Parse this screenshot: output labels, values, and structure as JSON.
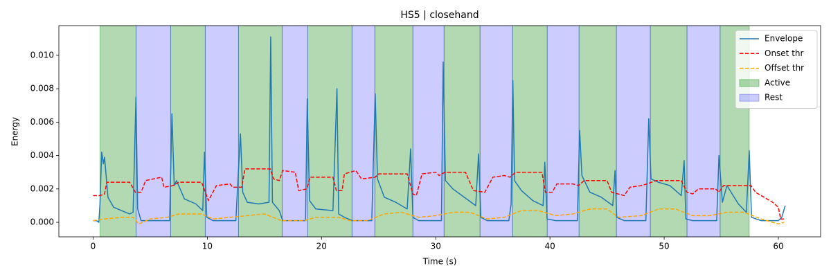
{
  "chart_data": {
    "type": "line",
    "title": "HS5 | closehand",
    "xlabel": "Time (s)",
    "ylabel": "Energy",
    "xlim": [
      -3.0,
      63.7
    ],
    "ylim": [
      -0.00087,
      0.01178
    ],
    "xticks": [
      0,
      10,
      20,
      30,
      40,
      50,
      60
    ],
    "yticks": [
      {
        "value": 0,
        "label": "0.000"
      },
      {
        "value": 0.002,
        "label": "0.002"
      },
      {
        "value": 0.004,
        "label": "0.004"
      },
      {
        "value": 0.006,
        "label": "0.006"
      },
      {
        "value": 0.008,
        "label": "0.008"
      },
      {
        "value": 0.01,
        "label": "0.010"
      }
    ],
    "legend": "upper right",
    "series": [
      {
        "name": "Envelope",
        "color": "#1f77b4",
        "dash": false,
        "x": [
          0,
          0.3,
          0.5,
          0.6,
          0.75,
          0.9,
          1.0,
          1.3,
          1.8,
          2.5,
          3.2,
          3.5,
          3.75,
          3.9,
          4.2,
          6.0,
          6.7,
          6.9,
          7.1,
          7.3,
          8.0,
          9.0,
          9.6,
          9.75,
          9.95,
          10.5,
          12.5,
          12.7,
          12.9,
          13.1,
          13.5,
          14.5,
          15.4,
          15.55,
          15.7,
          16.3,
          16.6,
          18.6,
          18.75,
          18.95,
          19.5,
          21.0,
          21.35,
          21.5,
          22.0,
          22.7,
          24.4,
          24.7,
          24.9,
          25.5,
          26.5,
          27.5,
          27.8,
          28.0,
          28.5,
          30.5,
          30.65,
          30.85,
          31.5,
          32.5,
          33.5,
          33.75,
          33.95,
          34.5,
          36.4,
          36.6,
          36.75,
          36.9,
          37.5,
          38.5,
          39.4,
          39.55,
          39.75,
          40.5,
          42.4,
          42.6,
          42.8,
          43.5,
          44.5,
          45.5,
          45.7,
          45.85,
          46.5,
          48.4,
          48.65,
          48.85,
          49.5,
          50.5,
          51.5,
          51.75,
          51.9,
          52.5,
          54.6,
          54.8,
          55.1,
          55.5,
          56.5,
          57.2,
          57.45,
          57.65,
          58.5,
          60.0,
          60.3,
          60.6
        ],
        "values": [
          0.0001,
          0.0001,
          0.0,
          0.0011,
          0.0042,
          0.0035,
          0.0039,
          0.0015,
          0.0009,
          0.0007,
          0.0005,
          0.0006,
          0.0075,
          0.0008,
          0.0001,
          0.0001,
          0.0001,
          0.0065,
          0.0022,
          0.0025,
          0.0014,
          0.0011,
          0.0007,
          0.0042,
          0.0003,
          0.0001,
          0.0001,
          0.0028,
          0.0053,
          0.0018,
          0.0012,
          0.0011,
          0.0012,
          0.0111,
          0.0012,
          0.0007,
          0.0001,
          0.0001,
          0.0074,
          0.0013,
          0.0008,
          0.0007,
          0.008,
          0.0005,
          0.0003,
          0.0001,
          0.0001,
          0.0077,
          0.0026,
          0.0015,
          0.0012,
          0.0008,
          0.0044,
          0.0003,
          0.0001,
          0.0001,
          0.0096,
          0.0025,
          0.002,
          0.0015,
          0.001,
          0.0041,
          0.0003,
          0.0001,
          0.0001,
          0.0011,
          0.0085,
          0.0025,
          0.0019,
          0.0013,
          0.001,
          0.0036,
          0.0002,
          0.0001,
          0.0001,
          0.0055,
          0.0028,
          0.0018,
          0.0015,
          0.001,
          0.0031,
          0.0003,
          0.0001,
          0.0001,
          0.0062,
          0.0026,
          0.0024,
          0.0022,
          0.0016,
          0.0037,
          0.0002,
          0.0001,
          0.0001,
          0.004,
          0.0012,
          0.0022,
          0.0011,
          0.0006,
          0.0043,
          0.0003,
          0.0001,
          0.0001,
          0.0003,
          0.001
        ]
      },
      {
        "name": "Onset thr",
        "color": "#ff0000",
        "dash": true,
        "x": [
          0,
          0.6,
          1.0,
          1.2,
          3.2,
          3.7,
          4.2,
          4.6,
          6.0,
          6.2,
          7.0,
          7.5,
          9.5,
          10.1,
          10.8,
          12.0,
          12.2,
          13.0,
          13.3,
          15.5,
          15.8,
          16.3,
          16.6,
          17.7,
          18.0,
          18.7,
          19.0,
          21.0,
          21.3,
          21.8,
          22.0,
          23.0,
          23.5,
          24.7,
          25.0,
          27.5,
          28.0,
          28.3,
          28.8,
          30.0,
          30.3,
          30.8,
          32.6,
          33.3,
          34.3,
          35.0,
          36.0,
          36.5,
          37.0,
          39.3,
          39.6,
          40.2,
          40.6,
          42.0,
          42.5,
          43.0,
          45.0,
          45.4,
          46.5,
          47.0,
          48.0,
          48.5,
          49.3,
          51.5,
          52.0,
          52.5,
          53.0,
          54.5,
          54.8,
          55.2,
          57.6,
          58.0,
          59.5,
          60.0,
          60.2,
          60.5
        ],
        "values": [
          0.0016,
          0.0016,
          0.0017,
          0.0024,
          0.0024,
          0.0018,
          0.0018,
          0.0025,
          0.0027,
          0.0021,
          0.0022,
          0.0024,
          0.0024,
          0.0013,
          0.0022,
          0.0023,
          0.0021,
          0.0021,
          0.0032,
          0.0032,
          0.0026,
          0.0025,
          0.0031,
          0.003,
          0.0019,
          0.002,
          0.0027,
          0.0027,
          0.0019,
          0.0019,
          0.0029,
          0.0031,
          0.0026,
          0.0027,
          0.0029,
          0.0029,
          0.0017,
          0.0016,
          0.0029,
          0.003,
          0.0028,
          0.003,
          0.003,
          0.0019,
          0.0018,
          0.0027,
          0.0028,
          0.0027,
          0.003,
          0.003,
          0.0018,
          0.0018,
          0.0023,
          0.0023,
          0.0022,
          0.0025,
          0.0025,
          0.0018,
          0.0016,
          0.0021,
          0.0022,
          0.0023,
          0.0025,
          0.0025,
          0.0018,
          0.0017,
          0.002,
          0.002,
          0.0018,
          0.0022,
          0.0022,
          0.0018,
          0.0012,
          0.0009,
          0.0002,
          0.0002
        ]
      },
      {
        "name": "Offset thr",
        "color": "#ffa500",
        "dash": true,
        "x": [
          0,
          1.0,
          2.5,
          3.5,
          4.0,
          5.0,
          6.5,
          7.5,
          9.5,
          10.5,
          12.0,
          13.5,
          15.0,
          16.5,
          18.5,
          19.5,
          21.5,
          22.5,
          24.0,
          25.5,
          27.0,
          28.5,
          30.0,
          31.5,
          33.0,
          34.5,
          36.0,
          37.5,
          39.0,
          40.5,
          42.0,
          43.5,
          45.0,
          46.0,
          48.0,
          49.5,
          51.0,
          52.5,
          54.0,
          55.5,
          57.0,
          58.5,
          59.5,
          60.0,
          60.5
        ],
        "values": [
          0.0001,
          0.0002,
          0.0003,
          0.0003,
          -0.0001,
          0.0002,
          0.0003,
          0.0005,
          0.0005,
          0.0002,
          0.0003,
          0.0004,
          0.0005,
          0.0001,
          0.0001,
          0.0003,
          0.0003,
          0.0001,
          0.0001,
          0.0005,
          0.0006,
          0.0003,
          0.0004,
          0.0006,
          0.0006,
          0.0002,
          0.0003,
          0.0007,
          0.0007,
          0.0004,
          0.0005,
          0.0008,
          0.0008,
          0.0003,
          0.0004,
          0.0008,
          0.0008,
          0.0004,
          0.0004,
          0.0006,
          0.0006,
          0.0002,
          0.0,
          -0.0001,
          0.0
        ]
      }
    ],
    "spans": [
      {
        "name": "Active",
        "color": "#008000",
        "opacity": 0.3,
        "ranges": [
          [
            0.6,
            3.76
          ],
          [
            6.79,
            9.82
          ],
          [
            12.73,
            16.55
          ],
          [
            18.79,
            22.67
          ],
          [
            24.67,
            28.0
          ],
          [
            30.73,
            33.88
          ],
          [
            36.73,
            39.76
          ],
          [
            42.55,
            45.82
          ],
          [
            48.79,
            52.0
          ],
          [
            54.9,
            57.45
          ]
        ]
      },
      {
        "name": "Rest",
        "color": "#0000ff",
        "opacity": 0.2,
        "ranges": [
          [
            3.76,
            6.79
          ],
          [
            9.82,
            12.73
          ],
          [
            16.55,
            18.79
          ],
          [
            22.67,
            24.67
          ],
          [
            28.0,
            30.73
          ],
          [
            33.88,
            36.73
          ],
          [
            39.76,
            42.55
          ],
          [
            45.82,
            48.79
          ],
          [
            52.0,
            54.9
          ]
        ]
      }
    ]
  }
}
